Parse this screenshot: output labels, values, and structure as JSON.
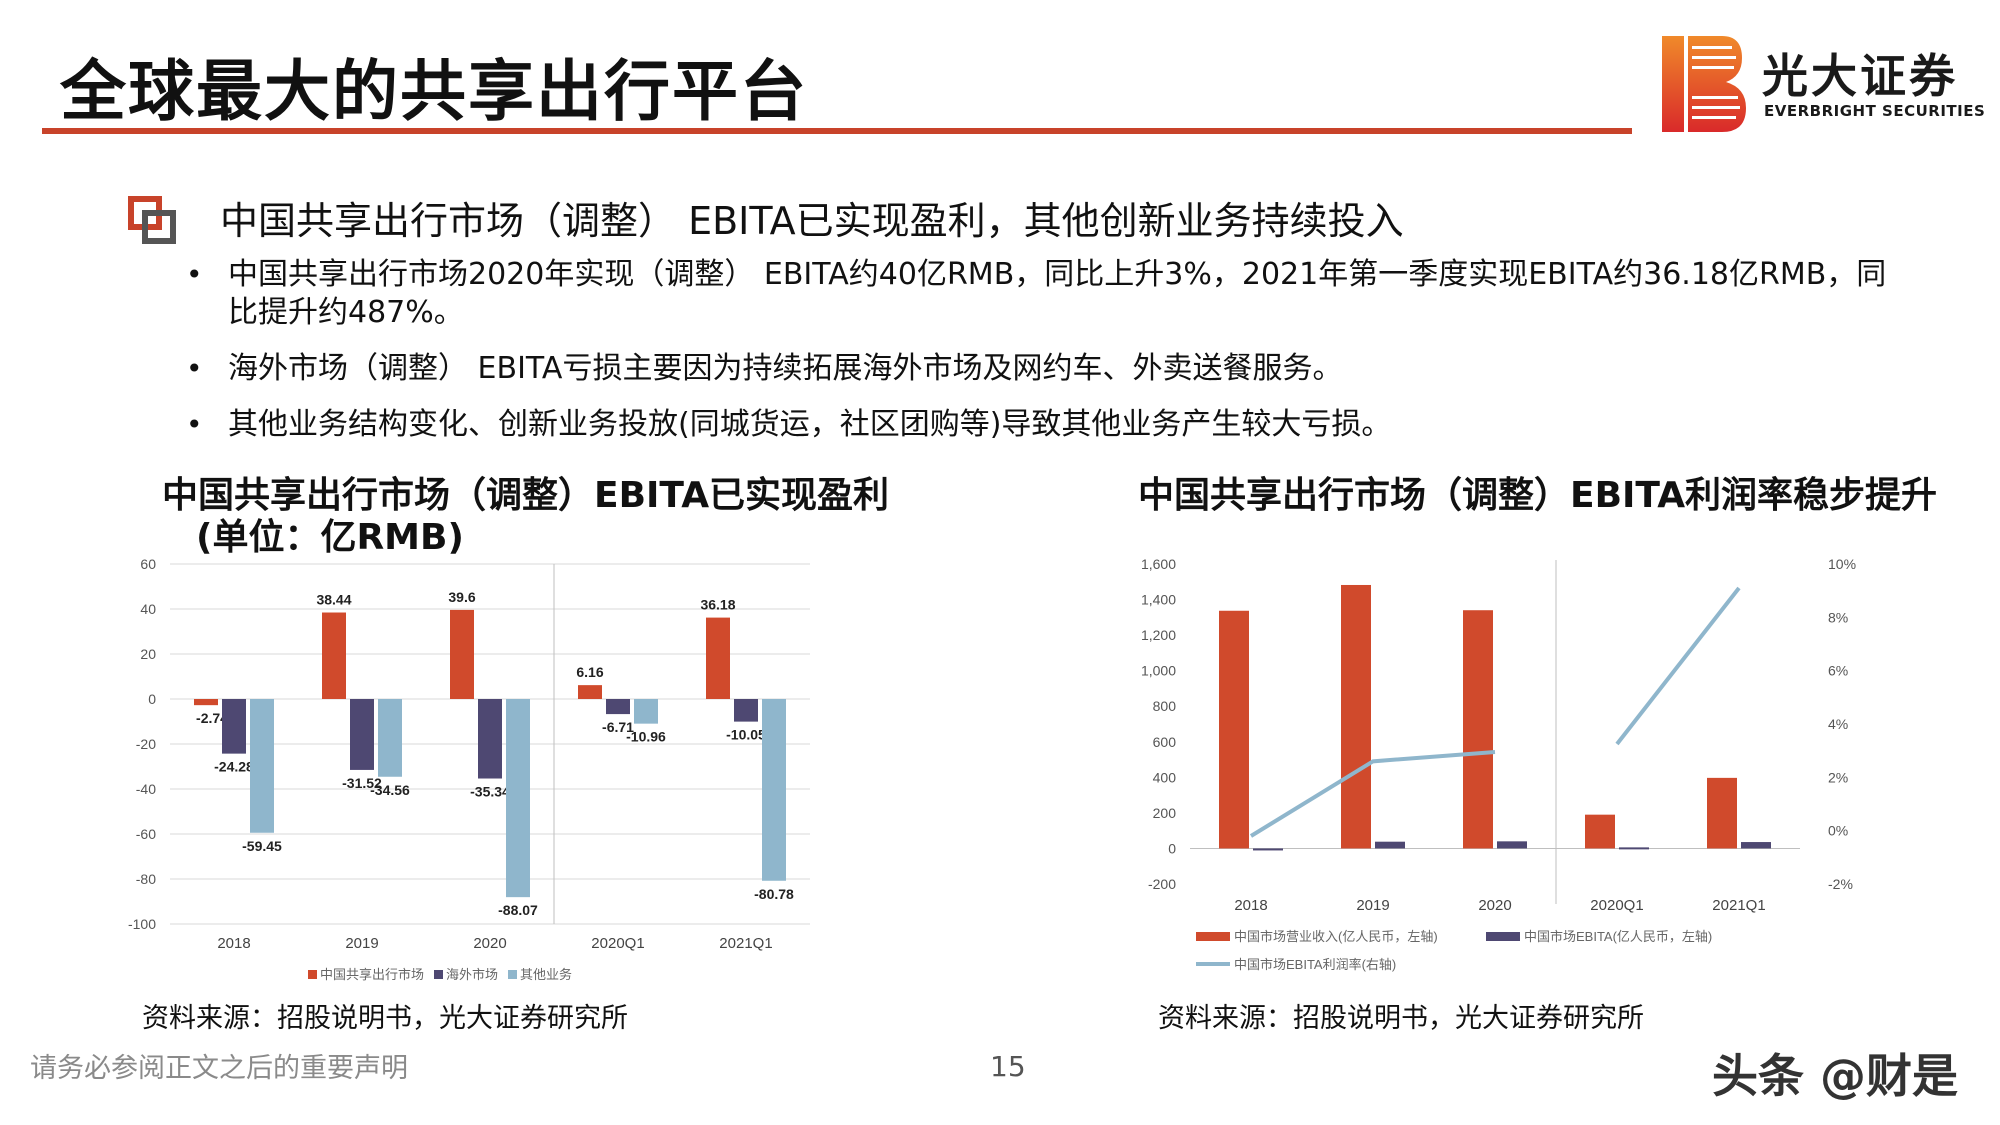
{
  "page": {
    "title": "全球最大的共享出行平台",
    "logo_cn": "光大证券",
    "logo_en": "EVERBRIGHT SECURITIES",
    "accent_color": "#c8432a",
    "section_heading": "中国共享出行市场（调整） EBITA已实现盈利，其他创新业务持续投入",
    "bullets": [
      "中国共享出行市场2020年实现（调整） EBITA约40亿RMB，同比上升3%，2021年第一季度实现EBITA约36.18亿RMB，同比提升约487%。",
      "海外市场（调整） EBITA亏损主要因为持续拓展海外市场及网约车、外卖送餐服务。",
      "其他业务结构变化、创新业务投放(同城货运，社区团购等)导致其他业务产生较大亏损。"
    ],
    "chart1_title_line1": "中国共享出行市场（调整）EBITA已实现盈利",
    "chart1_title_line2": "(单位：亿RMB)",
    "chart2_title": "中国共享出行市场（调整）EBITA利润率稳步提升",
    "source1": "资料来源：招股说明书，光大证券研究所",
    "source2": "资料来源：招股说明书，光大证券研究所",
    "disclaimer": "请务必参阅正文之后的重要声明",
    "page_number": "15",
    "watermark": "头条 @财是"
  },
  "chart_data": [
    {
      "type": "bar",
      "categories": [
        "2018",
        "2019",
        "2020",
        "2020Q1",
        "2021Q1"
      ],
      "series": [
        {
          "name": "中国共享出行市场",
          "color": "#d04a2c",
          "values": [
            -2.74,
            38.44,
            39.6,
            6.16,
            36.18
          ]
        },
        {
          "name": "海外市场",
          "color": "#4e4872",
          "values": [
            -24.28,
            -31.52,
            -35.34,
            -6.71,
            -10.05
          ]
        },
        {
          "name": "其他业务",
          "color": "#8fb6cc",
          "values": [
            -59.45,
            -34.56,
            -88.07,
            -10.96,
            -80.78
          ]
        }
      ],
      "data_labels": [
        [
          "-2.74",
          "38.44",
          "39.6",
          "6.16",
          "36.18"
        ],
        [
          "-24.28",
          "-31.52",
          "-35.34",
          "-6.71",
          "-10.05"
        ],
        [
          "-59.45",
          "-34.56",
          "-88.07",
          "-10.96",
          "-80.78"
        ]
      ],
      "ylim": [
        -100,
        60
      ],
      "yticks": [
        "60",
        "40",
        "20",
        "0",
        "-20",
        "-40",
        "-60",
        "-80",
        "-100"
      ],
      "grid": true,
      "legend": "bottom",
      "separator_between": [
        "2020",
        "2020Q1"
      ]
    },
    {
      "type": "bar",
      "categories": [
        "2018",
        "2019",
        "2020",
        "2020Q1",
        "2021Q1"
      ],
      "series": [
        {
          "name": "中国市场营业收入(亿人民币，左轴)",
          "color": "#d04a2c",
          "axis": "left",
          "values": [
            1337,
            1482,
            1340,
            190,
            397
          ]
        },
        {
          "name": "中国市场EBITA(亿人民币，左轴)",
          "color": "#4e4872",
          "axis": "left",
          "values": [
            -3,
            38,
            40,
            6,
            36
          ]
        },
        {
          "name": "中国市场EBITA利润率(右轴)",
          "color": "#8fb6cc",
          "axis": "right",
          "type": "line",
          "values": [
            -0.2,
            2.6,
            2.95,
            3.25,
            9.1
          ]
        }
      ],
      "ylim_left": [
        -200,
        1600
      ],
      "yticks_left": [
        "1,600",
        "1,400",
        "1,200",
        "1,000",
        "800",
        "600",
        "400",
        "200",
        "0",
        "-200"
      ],
      "ylim_right": [
        -2,
        10
      ],
      "yticks_right": [
        "10%",
        "8%",
        "6%",
        "4%",
        "2%",
        "0%",
        "-2%"
      ],
      "grid": false,
      "legend": "bottom",
      "line_segments": [
        [
          0,
          2
        ],
        [
          3,
          4
        ]
      ],
      "separator_between": [
        "2020",
        "2020Q1"
      ]
    }
  ]
}
